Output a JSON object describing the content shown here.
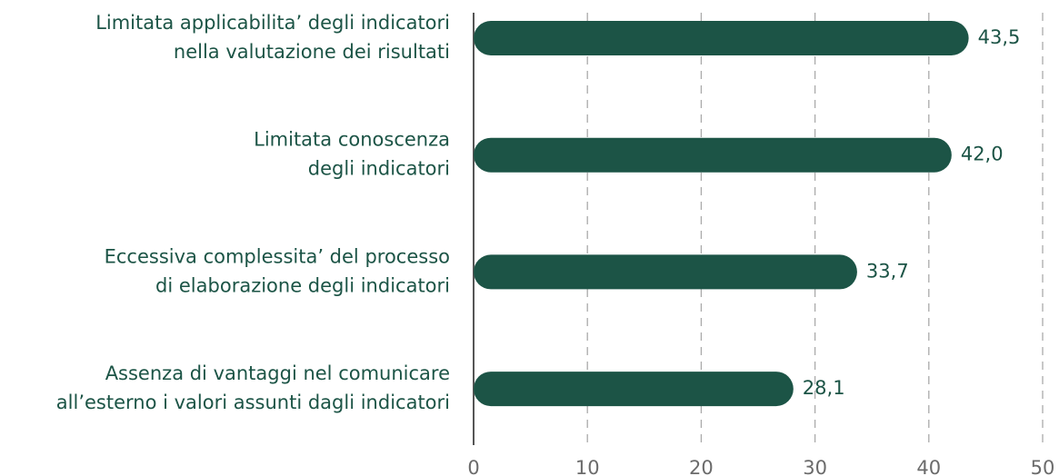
{
  "chart_data": {
    "type": "bar",
    "orientation": "horizontal",
    "categories": [
      [
        "Limitata applicabilita’ degli indicatori",
        "nella valutazione dei risultati"
      ],
      [
        "Limitata conoscenza",
        "degli indicatori"
      ],
      [
        "Eccessiva complessita’ del processo",
        "di elaborazione degli indicatori"
      ],
      [
        "Assenza di vantaggi nel comunicare",
        "all’esterno i valori assunti dagli indicatori"
      ]
    ],
    "values": [
      43.5,
      42.0,
      33.7,
      28.1
    ],
    "value_labels": [
      "43,5",
      "42,0",
      "33,7",
      "28,1"
    ],
    "color": "#1c5446",
    "xlim": [
      0,
      50
    ],
    "xticks": [
      0,
      10,
      20,
      30,
      40,
      50
    ],
    "grid": true
  }
}
